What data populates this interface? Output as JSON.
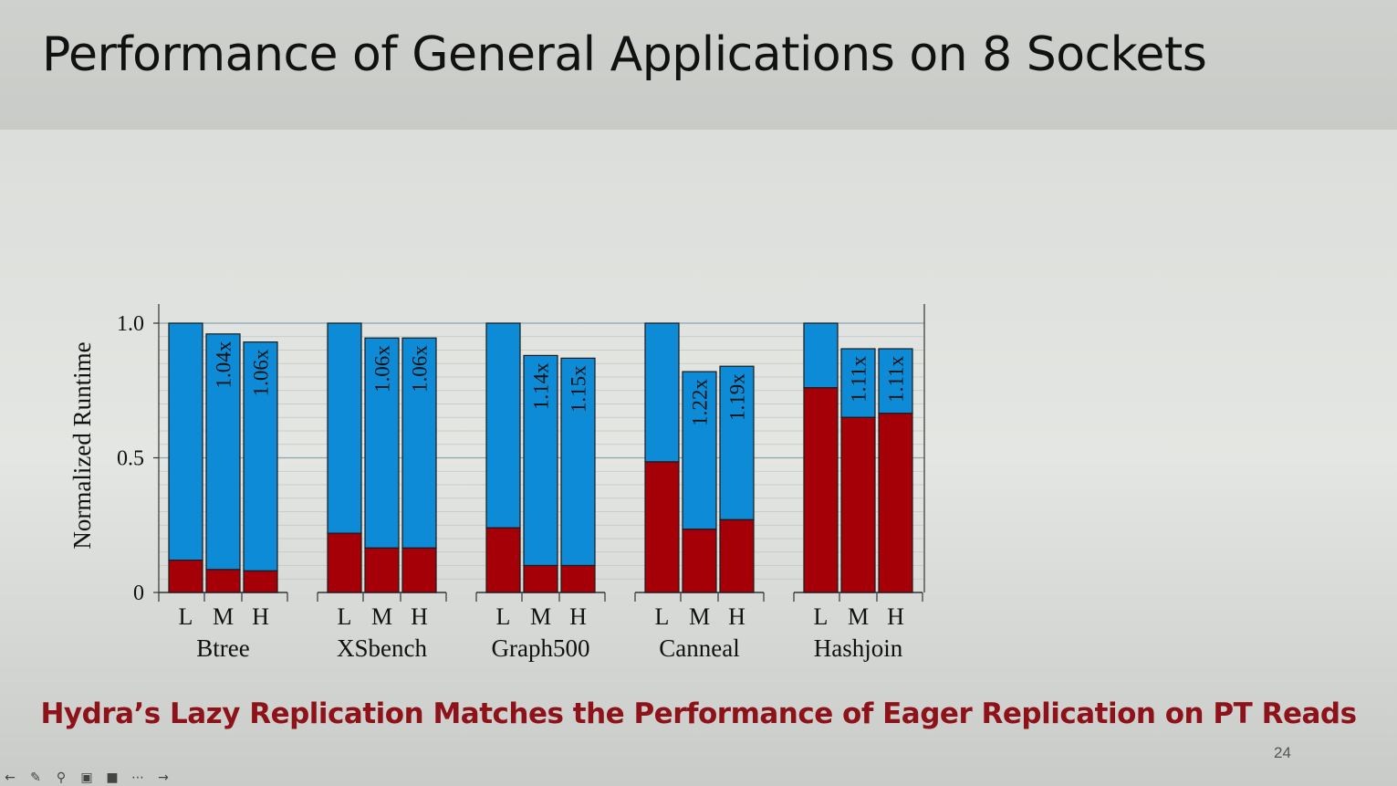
{
  "slide": {
    "title": "Performance of General Applications on 8 Sockets",
    "tagline": "Hydra’s Lazy Replication Matches the Performance of Eager Replication on PT Reads",
    "page_number": "24"
  },
  "toolbar": {
    "icons": [
      "back-arrow-icon",
      "pen-icon",
      "zoom-icon",
      "captions-icon",
      "camera-icon",
      "more-icon",
      "forward-arrow-icon"
    ]
  },
  "chart_data": {
    "type": "bar",
    "stacked": true,
    "ylabel": "Normalized Runtime",
    "ylim": [
      0,
      1.0
    ],
    "yticks": [
      "0",
      "0.5",
      "1.0"
    ],
    "ytick_values": [
      0,
      0.5,
      1.0
    ],
    "grid": true,
    "colors": {
      "bottom": "#a50008",
      "top": "#0e8bd6"
    },
    "groups": [
      {
        "name": "Btree",
        "bars": [
          {
            "label": "L",
            "bottom": 0.12,
            "total": 1.0,
            "annotation": ""
          },
          {
            "label": "M",
            "bottom": 0.085,
            "total": 0.96,
            "annotation": "1.04x"
          },
          {
            "label": "H",
            "bottom": 0.08,
            "total": 0.93,
            "annotation": "1.06x"
          }
        ]
      },
      {
        "name": "XSbench",
        "bars": [
          {
            "label": "L",
            "bottom": 0.22,
            "total": 1.0,
            "annotation": ""
          },
          {
            "label": "M",
            "bottom": 0.165,
            "total": 0.945,
            "annotation": "1.06x"
          },
          {
            "label": "H",
            "bottom": 0.165,
            "total": 0.945,
            "annotation": "1.06x"
          }
        ]
      },
      {
        "name": "Graph500",
        "bars": [
          {
            "label": "L",
            "bottom": 0.24,
            "total": 1.0,
            "annotation": ""
          },
          {
            "label": "M",
            "bottom": 0.1,
            "total": 0.88,
            "annotation": "1.14x"
          },
          {
            "label": "H",
            "bottom": 0.1,
            "total": 0.87,
            "annotation": "1.15x"
          }
        ]
      },
      {
        "name": "Canneal",
        "bars": [
          {
            "label": "L",
            "bottom": 0.485,
            "total": 1.0,
            "annotation": ""
          },
          {
            "label": "M",
            "bottom": 0.235,
            "total": 0.82,
            "annotation": "1.22x"
          },
          {
            "label": "H",
            "bottom": 0.27,
            "total": 0.84,
            "annotation": "1.19x"
          }
        ]
      },
      {
        "name": "Hashjoin",
        "bars": [
          {
            "label": "L",
            "bottom": 0.76,
            "total": 1.0,
            "annotation": ""
          },
          {
            "label": "M",
            "bottom": 0.65,
            "total": 0.905,
            "annotation": "1.11x"
          },
          {
            "label": "H",
            "bottom": 0.665,
            "total": 0.905,
            "annotation": "1.11x"
          }
        ]
      }
    ]
  }
}
